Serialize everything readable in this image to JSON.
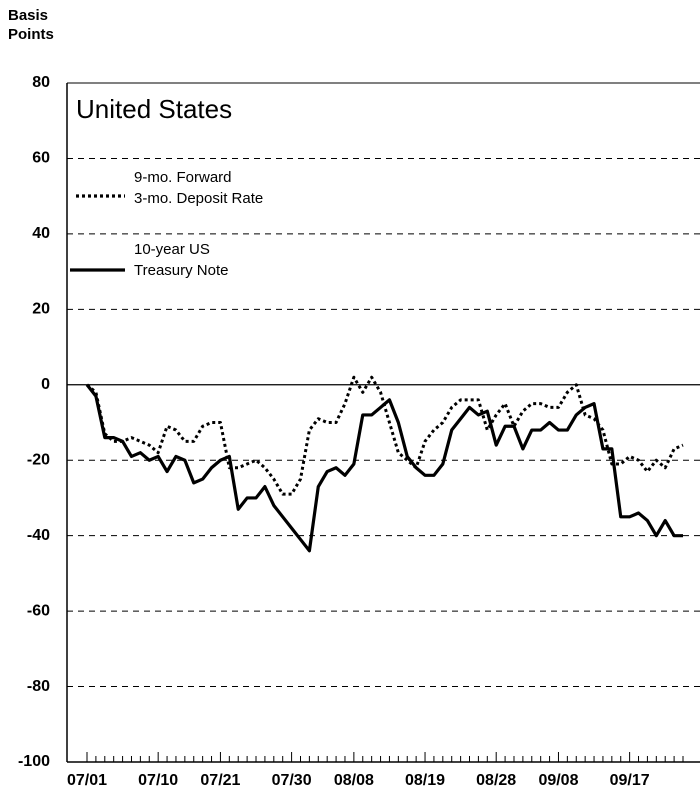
{
  "chart_data": {
    "type": "line",
    "title": "United States",
    "ylabel": "Basis\nPoints",
    "ylim": [
      -100,
      80
    ],
    "yticks": [
      -100,
      -80,
      -60,
      -40,
      -20,
      0,
      20,
      40,
      60,
      80
    ],
    "grid": true,
    "legend": "upper-left",
    "categories": [
      "07/01",
      null,
      null,
      null,
      null,
      null,
      null,
      null,
      "07/10",
      null,
      null,
      null,
      null,
      null,
      null,
      "07/21",
      null,
      null,
      null,
      null,
      null,
      null,
      null,
      "07/30",
      null,
      null,
      null,
      null,
      null,
      null,
      "08/08",
      null,
      null,
      null,
      null,
      null,
      null,
      null,
      "08/19",
      null,
      null,
      null,
      null,
      null,
      null,
      null,
      "08/28",
      null,
      null,
      null,
      null,
      null,
      null,
      "09/08",
      null,
      null,
      null,
      null,
      null,
      null,
      null,
      "09/17",
      null,
      null,
      null,
      null,
      null,
      null
    ],
    "series": [
      {
        "name": "9-mo. Forward\n3-mo. Deposit Rate",
        "color": "#000000",
        "style": "dotted",
        "values": [
          0,
          -2,
          -13,
          -15,
          -15,
          -14,
          -15,
          -16,
          -18,
          -11,
          -12,
          -15,
          -15,
          -11,
          -10,
          -10,
          -22,
          -22,
          -21,
          -20,
          -22,
          -25,
          -29,
          -29,
          -25,
          -12,
          -9,
          -10,
          -10,
          -5,
          2,
          -2,
          2,
          -2,
          -10,
          -18,
          -20,
          -22,
          -15,
          -12,
          -10,
          -6,
          -4,
          -4,
          -4,
          -12,
          -8,
          -5,
          -11,
          -7,
          -5,
          -5,
          -6,
          -6,
          -2,
          0,
          -8,
          -9,
          -12,
          -21,
          -21,
          -19,
          -20,
          -23,
          -20,
          -22,
          -17,
          -16
        ]
      },
      {
        "name": "10-year US\nTreasury Note",
        "color": "#000000",
        "style": "solid",
        "values": [
          0,
          -3,
          -14,
          -14,
          -15,
          -19,
          -18,
          -20,
          -19,
          -23,
          -19,
          -20,
          -26,
          -25,
          -22,
          -20,
          -19,
          -33,
          -30,
          -30,
          -27,
          -32,
          -35,
          -38,
          -41,
          -44,
          -27,
          -23,
          -22,
          -24,
          -21,
          -8,
          -8,
          -6,
          -4,
          -10,
          -19,
          -22,
          -24,
          -24,
          -21,
          -12,
          -9,
          -6,
          -8,
          -7,
          -16,
          -11,
          -11,
          -17,
          -12,
          -12,
          -10,
          -12,
          -12,
          -8,
          -6,
          -5,
          -17,
          -17,
          -35,
          -35,
          -34,
          -36,
          -40,
          -36,
          -40,
          -40
        ]
      }
    ]
  }
}
